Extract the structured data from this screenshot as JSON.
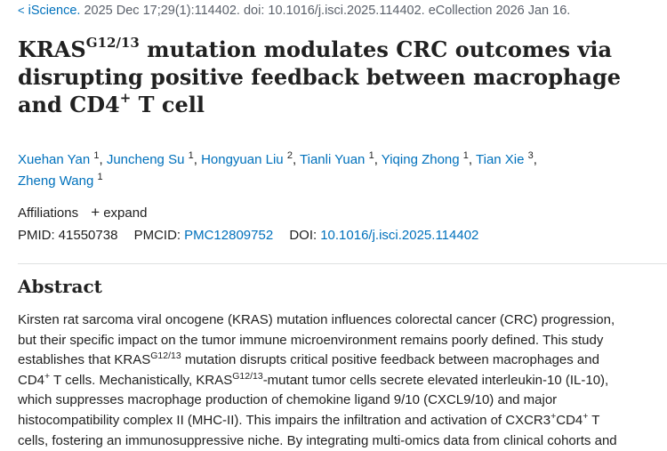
{
  "citation": {
    "chevron": "<",
    "journal": "iScience.",
    "details": "2025 Dec 17;29(1):114402. doi: 10.1016/j.isci.2025.114402. eCollection 2026 Jan 16."
  },
  "title": {
    "part1": "KRAS",
    "sup": "G12/13",
    "part2": " mutation modulates CRC outcomes via",
    "line2": "disrupting positive feedback between macrophage",
    "line3a": "and CD4",
    "line3sup": "+",
    "line3b": " T cell"
  },
  "authors": [
    {
      "name": "Xuehan Yan",
      "aff": "1"
    },
    {
      "name": "Juncheng Su",
      "aff": "1"
    },
    {
      "name": "Hongyuan Liu",
      "aff": "2"
    },
    {
      "name": "Tianli Yuan",
      "aff": "1"
    },
    {
      "name": "Yiqing Zhong",
      "aff": "1"
    },
    {
      "name": "Tian Xie",
      "aff": "3"
    },
    {
      "name": "Zheng Wang",
      "aff": "1"
    }
  ],
  "affiliations": {
    "label": "Affiliations",
    "expand_icon": "plus-icon",
    "expand_label": "expand"
  },
  "ids": {
    "pmid_label": "PMID:",
    "pmid": "41550738",
    "pmcid_label": "PMCID:",
    "pmcid": "PMC12809752",
    "doi_label": "DOI:",
    "doi": "10.1016/j.isci.2025.114402"
  },
  "abstract": {
    "heading": "Abstract",
    "l1": "Kirsten rat sarcoma viral oncogene (KRAS) mutation influences colorectal cancer (CRC) progression,",
    "l2": "but their specific impact on the tumor immune microenvironment remains poorly defined. This study",
    "l3a": "establishes that KRAS",
    "l3sup": "G12/13",
    "l3b": " mutation disrupts critical positive feedback between macrophages and",
    "l4a": "CD4",
    "l4sup1": "+",
    "l4b": " T cells. Mechanistically, KRAS",
    "l4sup2": "G12/13",
    "l4c": "-mutant tumor cells secrete elevated interleukin-10 (IL-10),",
    "l5": "which suppresses macrophage production of chemokine ligand 9/10 (CXCL9/10) and major",
    "l6a": "histocompatibility complex II (MHC-II). This impairs the infiltration and activation of CXCR3",
    "l6sup1": "+",
    "l6b": "CD4",
    "l6sup2": "+",
    "l6c": " T",
    "l7": "cells, fostering an immunosuppressive niche. By integrating multi-omics data from clinical cohorts and"
  }
}
